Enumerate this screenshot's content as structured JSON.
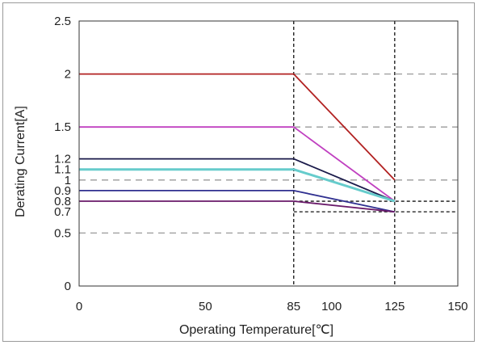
{
  "chart_data": {
    "type": "line",
    "xlabel": "Operating Temperature[℃]",
    "ylabel": "Derating Current[A]",
    "xlim": [
      0,
      150
    ],
    "ylim": [
      0,
      2.5
    ],
    "x_ticks": [
      "0",
      "50",
      "85",
      "100",
      "125",
      "150"
    ],
    "x_tick_values": [
      0,
      50,
      85,
      100,
      125,
      150
    ],
    "y_ticks": [
      "0",
      "0.5",
      "0.7",
      "0.8",
      "0.9",
      "1",
      "1.1",
      "1.2",
      "1.5",
      "2",
      "2.5"
    ],
    "y_tick_values": [
      0,
      0.5,
      0.7,
      0.8,
      0.9,
      1.0,
      1.1,
      1.2,
      1.5,
      2.0,
      2.5
    ],
    "dashed_reference_lines": {
      "vertical": [
        85,
        125
      ],
      "horizontal_gray": [
        0.5,
        1.0,
        1.5,
        2.0
      ],
      "horizontal_black": [
        0.7,
        0.8
      ]
    },
    "series": [
      {
        "color": "#b22222",
        "points": [
          [
            0,
            2.0
          ],
          [
            85,
            2.0
          ],
          [
            125,
            1.0
          ]
        ]
      },
      {
        "color": "#c040c0",
        "points": [
          [
            0,
            1.5
          ],
          [
            85,
            1.5
          ],
          [
            125,
            0.8
          ]
        ]
      },
      {
        "color": "#1a1a4a",
        "points": [
          [
            0,
            1.2
          ],
          [
            85,
            1.2
          ],
          [
            125,
            0.8
          ]
        ]
      },
      {
        "color": "#66cccc",
        "points": [
          [
            0,
            1.1
          ],
          [
            85,
            1.1
          ],
          [
            125,
            0.8
          ]
        ]
      },
      {
        "color": "#303090",
        "points": [
          [
            0,
            0.9
          ],
          [
            85,
            0.9
          ],
          [
            125,
            0.7
          ]
        ]
      },
      {
        "color": "#6a1a6a",
        "points": [
          [
            0,
            0.8
          ],
          [
            85,
            0.8
          ],
          [
            125,
            0.7
          ]
        ]
      }
    ],
    "grid": false,
    "legend": "none"
  }
}
